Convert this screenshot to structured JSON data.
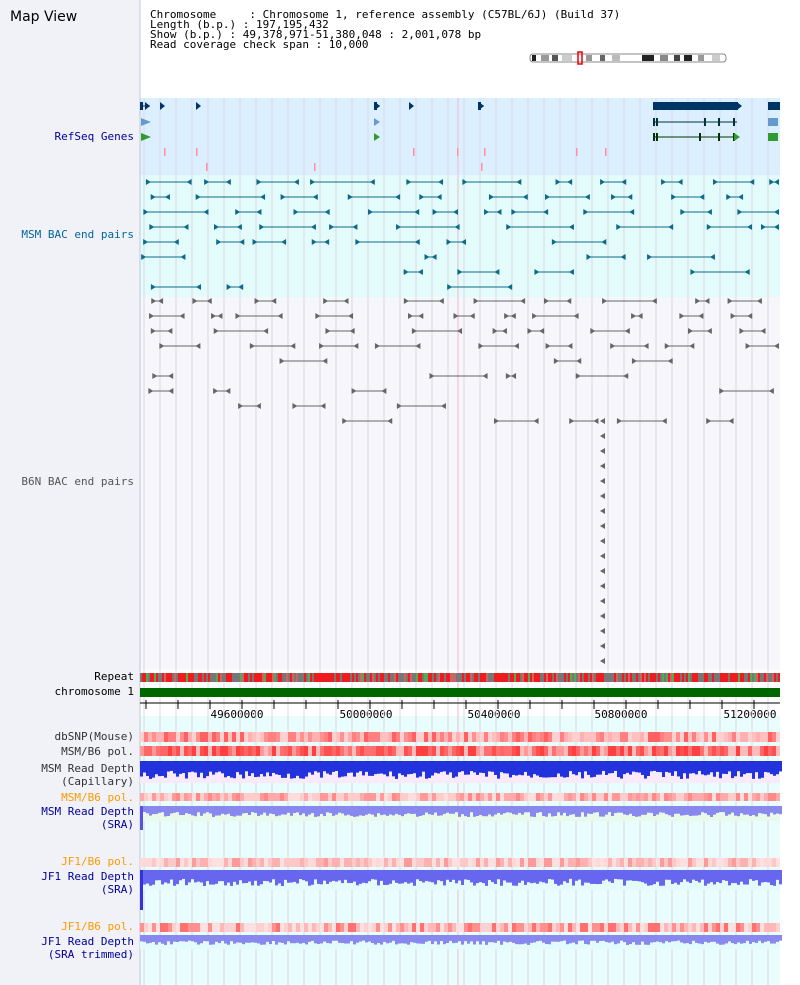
{
  "header": {
    "title": "Map View",
    "chromosome_line": "Chromosome     : Chromosome 1, reference assembly (C57BL/6J) (Build 37)",
    "length_line": "Length (b.p.) : 197,195,432",
    "show_line": "Show (b.p.) : 49,378,971-51,380,048 : 2,001,078 bp",
    "coverage_line": "Read coverage check span : 10,000"
  },
  "tracks": {
    "refseq": "RefSeq Genes",
    "msm_bac": "MSM BAC end pairs",
    "b6n_bac": "B6N BAC end pairs",
    "repeat": "Repeat",
    "chromosome": "chromosome 1",
    "dbsnp": "dbSNP(Mouse)",
    "msm_b6_pol_1": "MSM/B6 pol.",
    "msm_read_depth_cap_1": "MSM Read Depth",
    "msm_read_depth_cap_2": "(Capillary)",
    "msm_b6_pol_2": "MSM/B6 pol.",
    "msm_read_depth_sra_1": "MSM Read Depth",
    "msm_read_depth_sra_2": "(SRA)",
    "jf1_b6_pol_1": "JF1/B6 pol.",
    "jf1_read_depth_sra_1": "JF1 Read Depth",
    "jf1_read_depth_sra_2": "(SRA)",
    "jf1_b6_pol_2": "JF1/B6 pol.",
    "jf1_read_depth_trim_1": "JF1 Read Depth",
    "jf1_read_depth_trim_2": "(SRA trimmed)"
  },
  "axis": {
    "tick_labels": [
      "49600000",
      "50000000",
      "50400000",
      "50800000",
      "51200000"
    ]
  },
  "colors": {
    "refseq_label": "#000099",
    "msm_label": "#006699",
    "b6n_label": "#555555",
    "orange_label": "#ff9900",
    "blue_label": "#000099",
    "chromosome_bar": "#006600"
  }
}
